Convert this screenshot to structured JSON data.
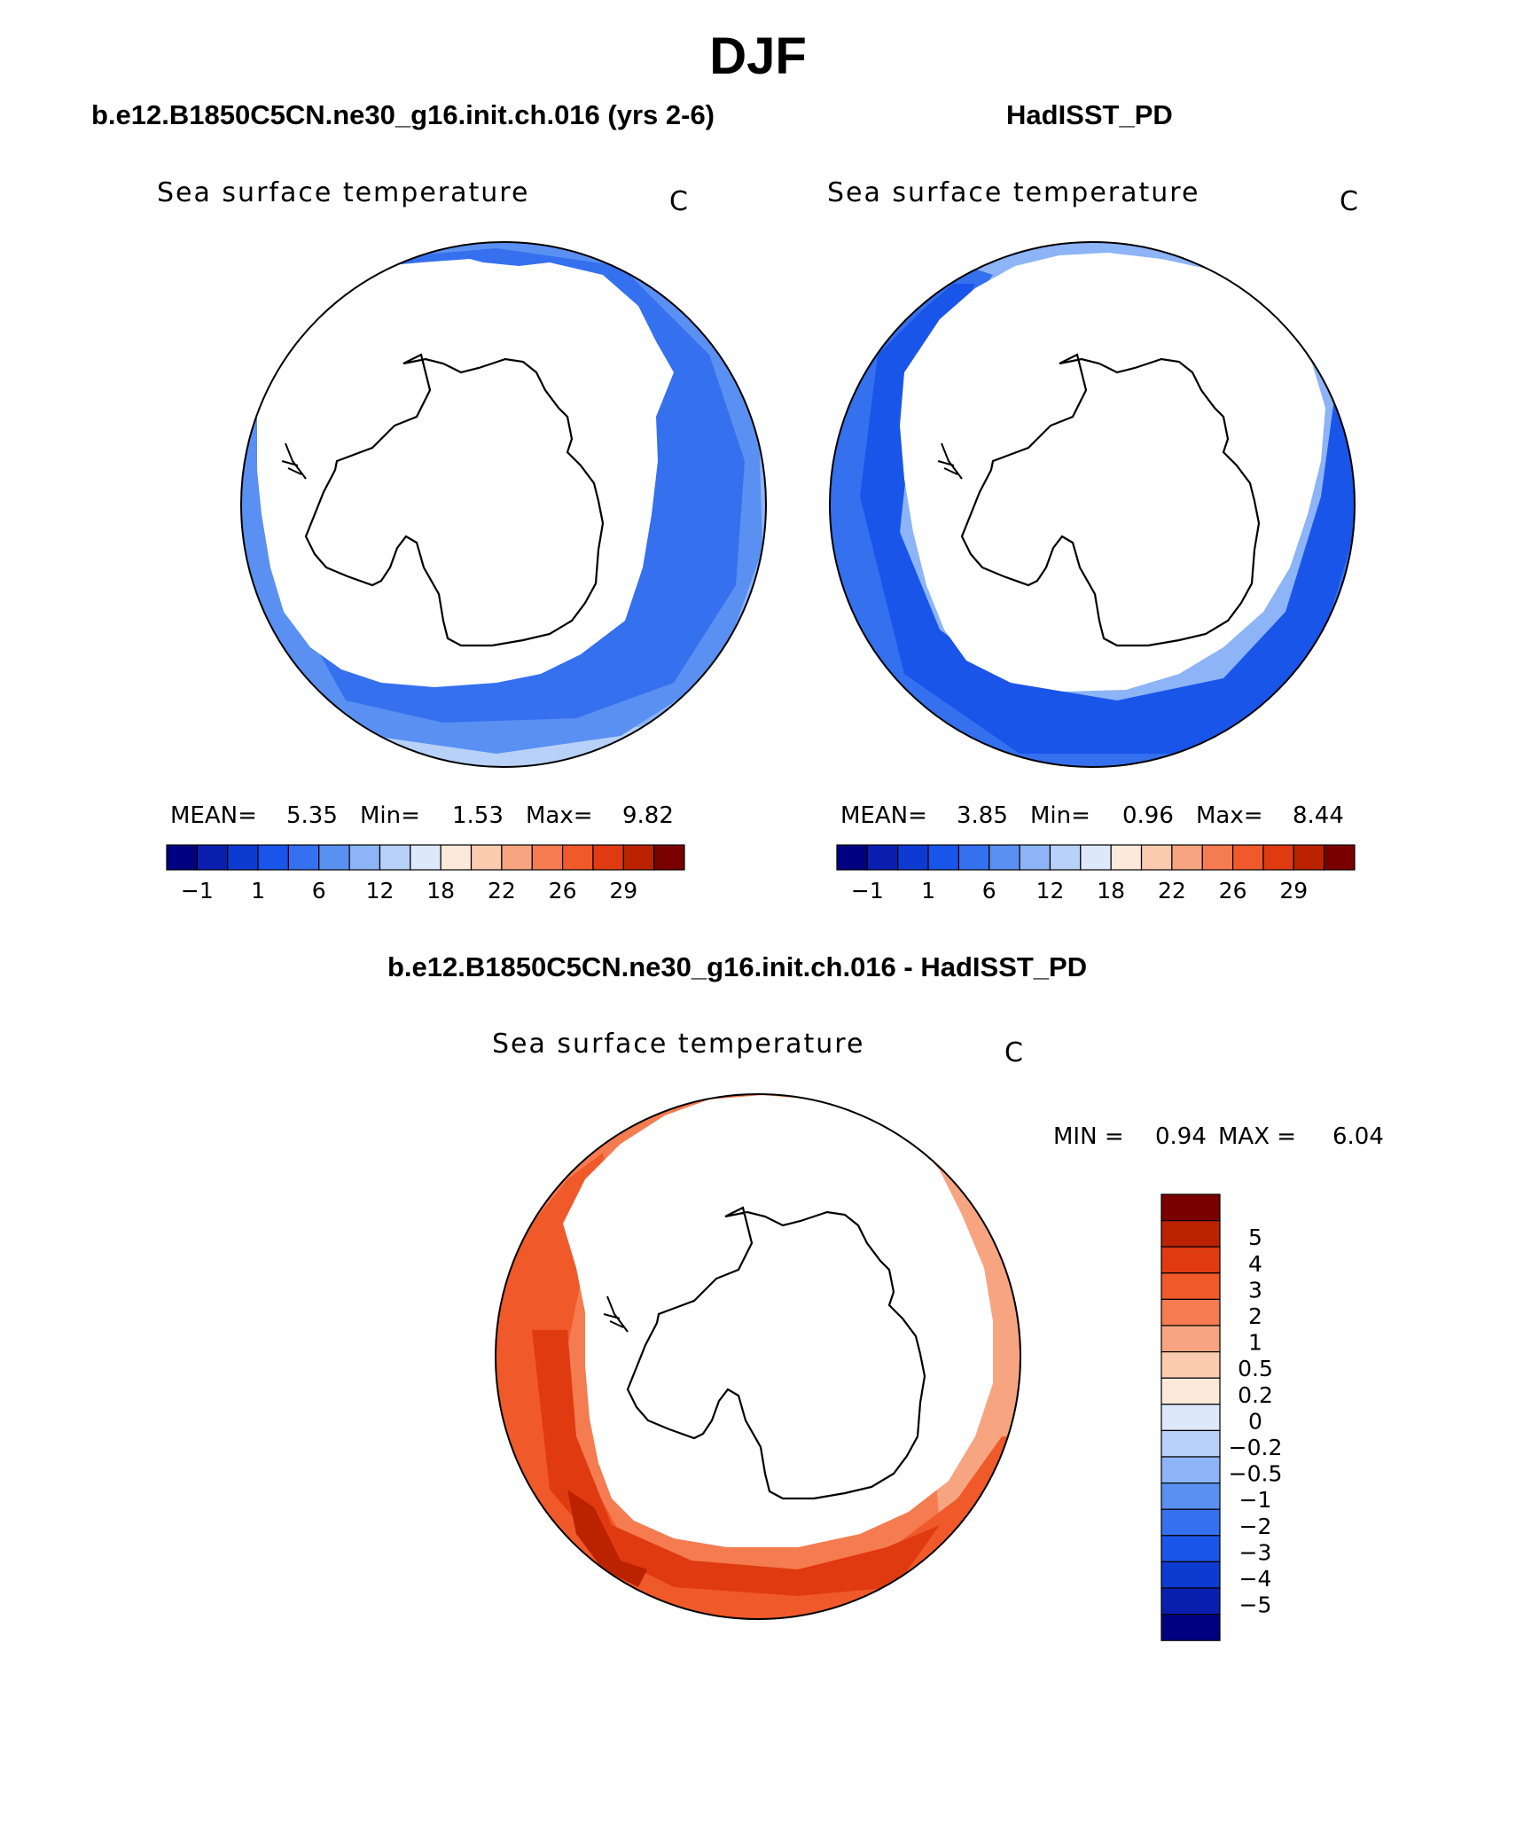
{
  "page": {
    "season_title": "DJF"
  },
  "panels": {
    "model": {
      "case_title": "b.e12.B1850C5CN.ne30_g16.init.ch.016 (yrs 2-6)",
      "variable_label": "Sea surface temperature",
      "unit": "C",
      "mean_label": "MEAN=",
      "mean_value": "5.35",
      "min_label": "Min=",
      "min_value": "1.53",
      "max_label": "Max=",
      "max_value": "9.82"
    },
    "obs": {
      "case_title": "HadISST_PD",
      "variable_label": "Sea surface temperature",
      "unit": "C",
      "mean_label": "MEAN=",
      "mean_value": "3.85",
      "min_label": "Min=",
      "min_value": "0.96",
      "max_label": "Max=",
      "max_value": "8.44"
    },
    "diff": {
      "case_title": "b.e12.B1850C5CN.ne30_g16.init.ch.016 - HadISST_PD",
      "variable_label": "Sea surface temperature",
      "unit": "C",
      "min_label": "MIN =",
      "min_value": "0.94",
      "max_label": "MAX =",
      "max_value": "6.04"
    }
  },
  "colorbars": {
    "abs": {
      "colors": [
        "#000080",
        "#0a1fb0",
        "#0d3ad0",
        "#1a55ea",
        "#3570ee",
        "#5a90f2",
        "#8cb4f6",
        "#b8d1f8",
        "#dde9fb",
        "#fde9d9",
        "#fbcbb0",
        "#f7a581",
        "#f47c50",
        "#f05a2a",
        "#e03a10",
        "#bb2200",
        "#7a0000"
      ],
      "labels": [
        "−1",
        "1",
        "6",
        "12",
        "18",
        "22",
        "26",
        "29"
      ]
    },
    "diff": {
      "colors": [
        "#7a0000",
        "#bb2200",
        "#e03a10",
        "#f05a2a",
        "#f47c50",
        "#f7a581",
        "#fbcbb0",
        "#fde9d9",
        "#dde9fb",
        "#b8d1f8",
        "#8cb4f6",
        "#5a90f2",
        "#3570ee",
        "#1a55ea",
        "#0d3ad0",
        "#0a1fb0",
        "#000080"
      ],
      "labels": [
        "5",
        "4",
        "3",
        "2",
        "1",
        "0.5",
        "0.2",
        "0",
        "−0.2",
        "−0.5",
        "−1",
        "−2",
        "−3",
        "−4",
        "−5"
      ]
    }
  },
  "map_colors": {
    "model_outer": "#8cb4f6",
    "model_mid": "#5a90f2",
    "model_inner": "#3570ee",
    "model_edge": "#b8d1f8",
    "obs_outer": "#8cb4f6",
    "obs_mid": "#3570ee",
    "obs_inner": "#1a55ea",
    "diff_outer": "#f47c50",
    "diff_mid": "#f05a2a",
    "diff_inner": "#e03a10",
    "diff_dark": "#bb2200",
    "diff_light": "#f7a581"
  }
}
